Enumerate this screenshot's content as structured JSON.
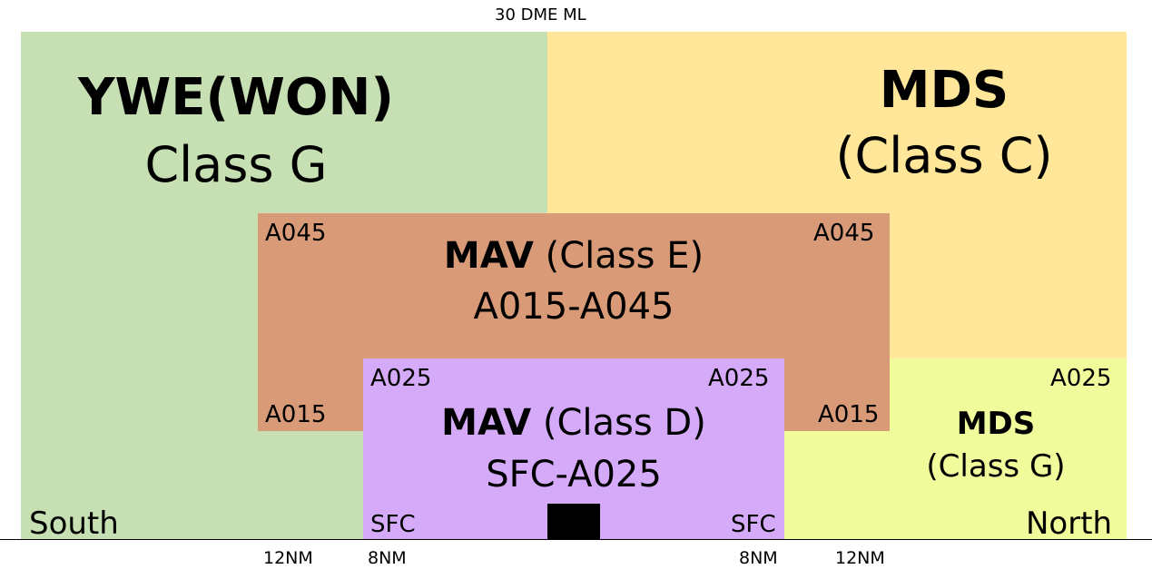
{
  "top_label": "30 DME ML",
  "colors": {
    "class_g_south": "#c6e0b4",
    "class_c": "#ffe699",
    "class_e": "#d99a78",
    "class_d": "#d4aaf9",
    "class_g_north": "#f0fc9c",
    "airport": "#000000"
  },
  "zones": {
    "ywe": {
      "title": "YWE(WON)",
      "subtitle": "Class G"
    },
    "mds_c": {
      "title": "MDS",
      "subtitle": "(Class C)"
    },
    "mav_e": {
      "title": "MAV",
      "class": "(Class E)",
      "range": "A015-A045",
      "top_left": "A045",
      "top_right": "A045",
      "bottom_left": "A015",
      "bottom_right": "A015"
    },
    "mav_d": {
      "title": "MAV",
      "class": "(Class D)",
      "range": "SFC-A025",
      "top_left": "A025",
      "top_right": "A025",
      "bottom_left": "SFC",
      "bottom_right": "SFC"
    },
    "mds_g": {
      "title": "MDS",
      "subtitle": "(Class G)",
      "top_right": "A025"
    }
  },
  "directions": {
    "south": "South",
    "north": "North"
  },
  "distances": {
    "left_outer": "12NM",
    "left_inner": "8NM",
    "right_inner": "8NM",
    "right_outer": "12NM"
  }
}
